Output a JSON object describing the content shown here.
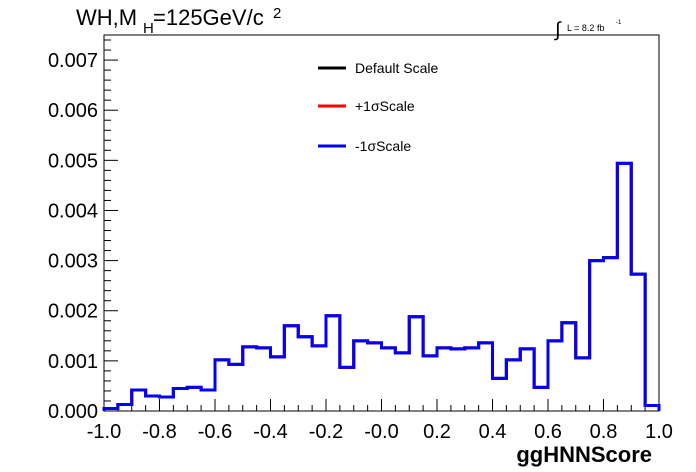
{
  "chart_data": {
    "type": "histogram",
    "title_main": "WH,M",
    "title_sub": "H",
    "title_rest": "=125GeV/c",
    "title_sup": "2",
    "lumi_main": "L = 8.2 fb",
    "lumi_sup": "-1",
    "lumi_symbol": "∫",
    "xlabel": "ggHNNScore",
    "xlim": [
      -1.0,
      1.0
    ],
    "ylim": [
      0,
      0.0075
    ],
    "x_ticks": [
      "-1.0",
      "-0.8",
      "-0.6",
      "-0.4",
      "-0.2",
      "-0.0",
      "0.2",
      "0.4",
      "0.6",
      "0.8",
      "1.0"
    ],
    "x_tick_values": [
      -1.0,
      -0.8,
      -0.6,
      -0.4,
      -0.2,
      0.0,
      0.2,
      0.4,
      0.6,
      0.8,
      1.0
    ],
    "y_ticks": [
      "0.000",
      "0.001",
      "0.002",
      "0.003",
      "0.004",
      "0.005",
      "0.006",
      "0.007"
    ],
    "y_tick_values": [
      0,
      0.001,
      0.002,
      0.003,
      0.004,
      0.005,
      0.006,
      0.007
    ],
    "bin_edges_start": -1.0,
    "bin_width": 0.05,
    "series": [
      {
        "name": "Default Scale",
        "color": "#000000",
        "values": [
          5e-05,
          0.00013,
          0.00042,
          0.0003,
          0.00028,
          0.00045,
          0.00047,
          0.00042,
          0.00102,
          0.00093,
          0.00128,
          0.00126,
          0.00108,
          0.0017,
          0.00148,
          0.0013,
          0.0019,
          0.00087,
          0.0014,
          0.00136,
          0.00126,
          0.00116,
          0.00188,
          0.0011,
          0.00126,
          0.00124,
          0.00126,
          0.00136,
          0.00065,
          0.00102,
          0.00124,
          0.00047,
          0.0014,
          0.00176,
          0.00106,
          0.003,
          0.00306,
          0.00494,
          0.00273,
          0.00011
        ]
      },
      {
        "name": "+1σScale",
        "color": "#ff0000",
        "values": [
          5e-05,
          0.00013,
          0.00042,
          0.0003,
          0.00028,
          0.00045,
          0.00047,
          0.00042,
          0.00102,
          0.00093,
          0.00128,
          0.00126,
          0.00108,
          0.0017,
          0.00148,
          0.0013,
          0.0019,
          0.00087,
          0.0014,
          0.00136,
          0.00126,
          0.00116,
          0.00188,
          0.0011,
          0.00126,
          0.00124,
          0.00126,
          0.00136,
          0.00065,
          0.00102,
          0.00124,
          0.00047,
          0.0014,
          0.00176,
          0.00106,
          0.003,
          0.00306,
          0.00494,
          0.00273,
          0.00011
        ]
      },
      {
        "name": "-1σScale",
        "color": "#0000ff",
        "values": [
          5e-05,
          0.00013,
          0.00042,
          0.0003,
          0.00028,
          0.00045,
          0.00047,
          0.00042,
          0.00102,
          0.00093,
          0.00128,
          0.00126,
          0.00108,
          0.0017,
          0.00148,
          0.0013,
          0.0019,
          0.00087,
          0.0014,
          0.00136,
          0.00126,
          0.00116,
          0.00188,
          0.0011,
          0.00126,
          0.00124,
          0.00126,
          0.00136,
          0.00065,
          0.00102,
          0.00124,
          0.00047,
          0.0014,
          0.00176,
          0.00106,
          0.003,
          0.00306,
          0.00494,
          0.00273,
          0.00011
        ]
      }
    ],
    "legend_position": "top-center"
  }
}
